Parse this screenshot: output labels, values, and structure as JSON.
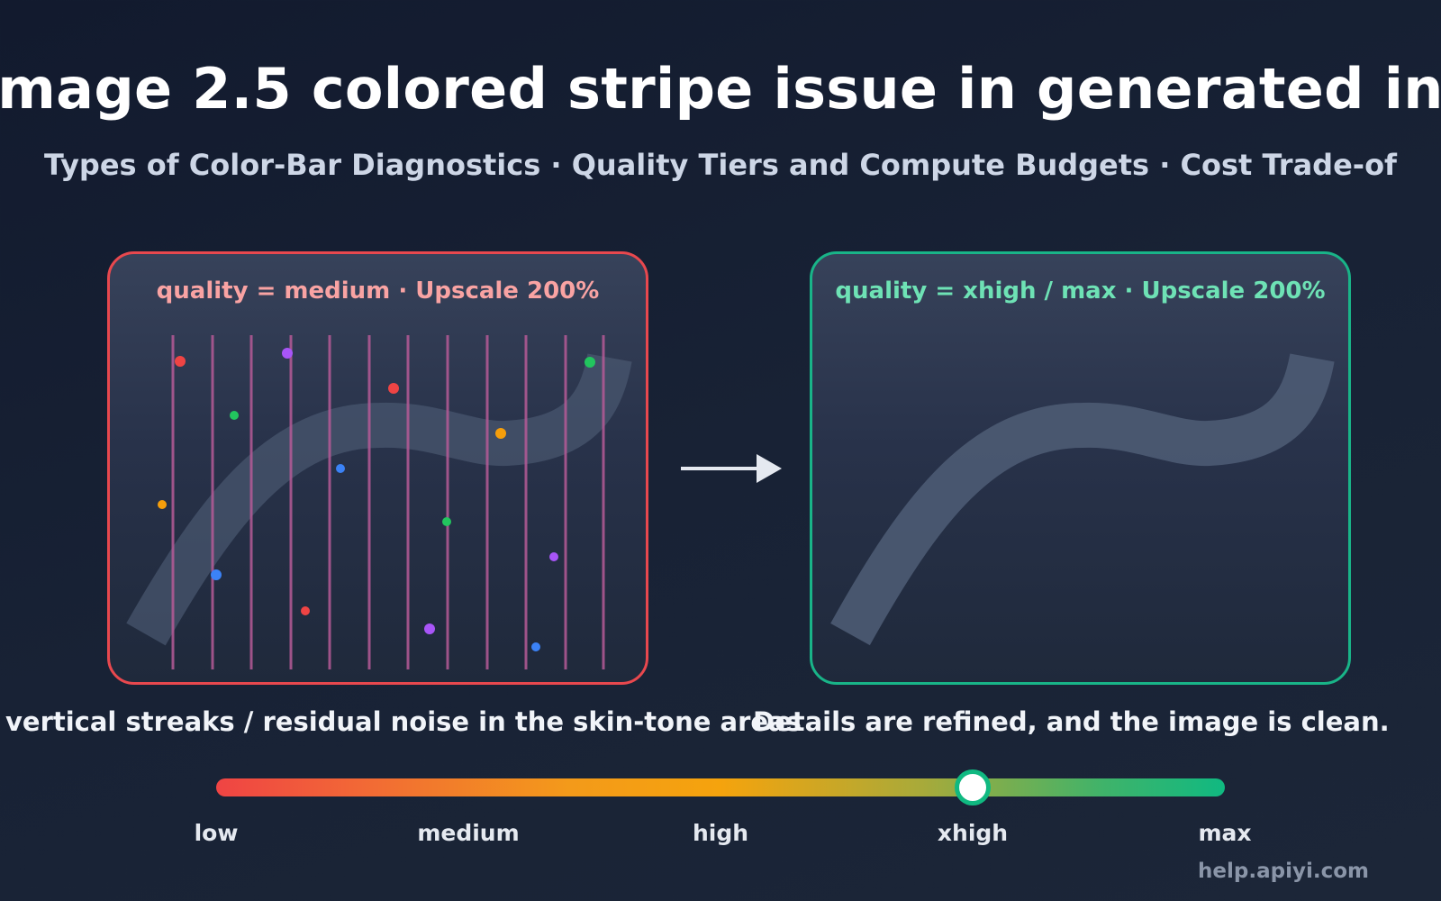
{
  "header": {
    "title": "mage 2.5 colored stripe issue in generated in",
    "subtitle": "Types of Color-Bar Diagnostics · Quality Tiers and Compute Budgets · Cost Trade-of"
  },
  "panels": {
    "left": {
      "label": "quality = medium · Upscale 200%",
      "caption": "vertical streaks / residual noise in the skin-tone areas",
      "border_color": "#e8484e",
      "stripe_color": "#b55a96"
    },
    "right": {
      "label": "quality = xhigh / max · Upscale 200%",
      "caption": "Details are refined, and the image is clean.",
      "border_color": "#19b488"
    }
  },
  "slider": {
    "tiers": [
      "low",
      "medium",
      "high",
      "xhigh",
      "max"
    ],
    "selected": "xhigh",
    "value_fraction": 0.75
  },
  "footer": {
    "site": "help.apiyi.com"
  }
}
